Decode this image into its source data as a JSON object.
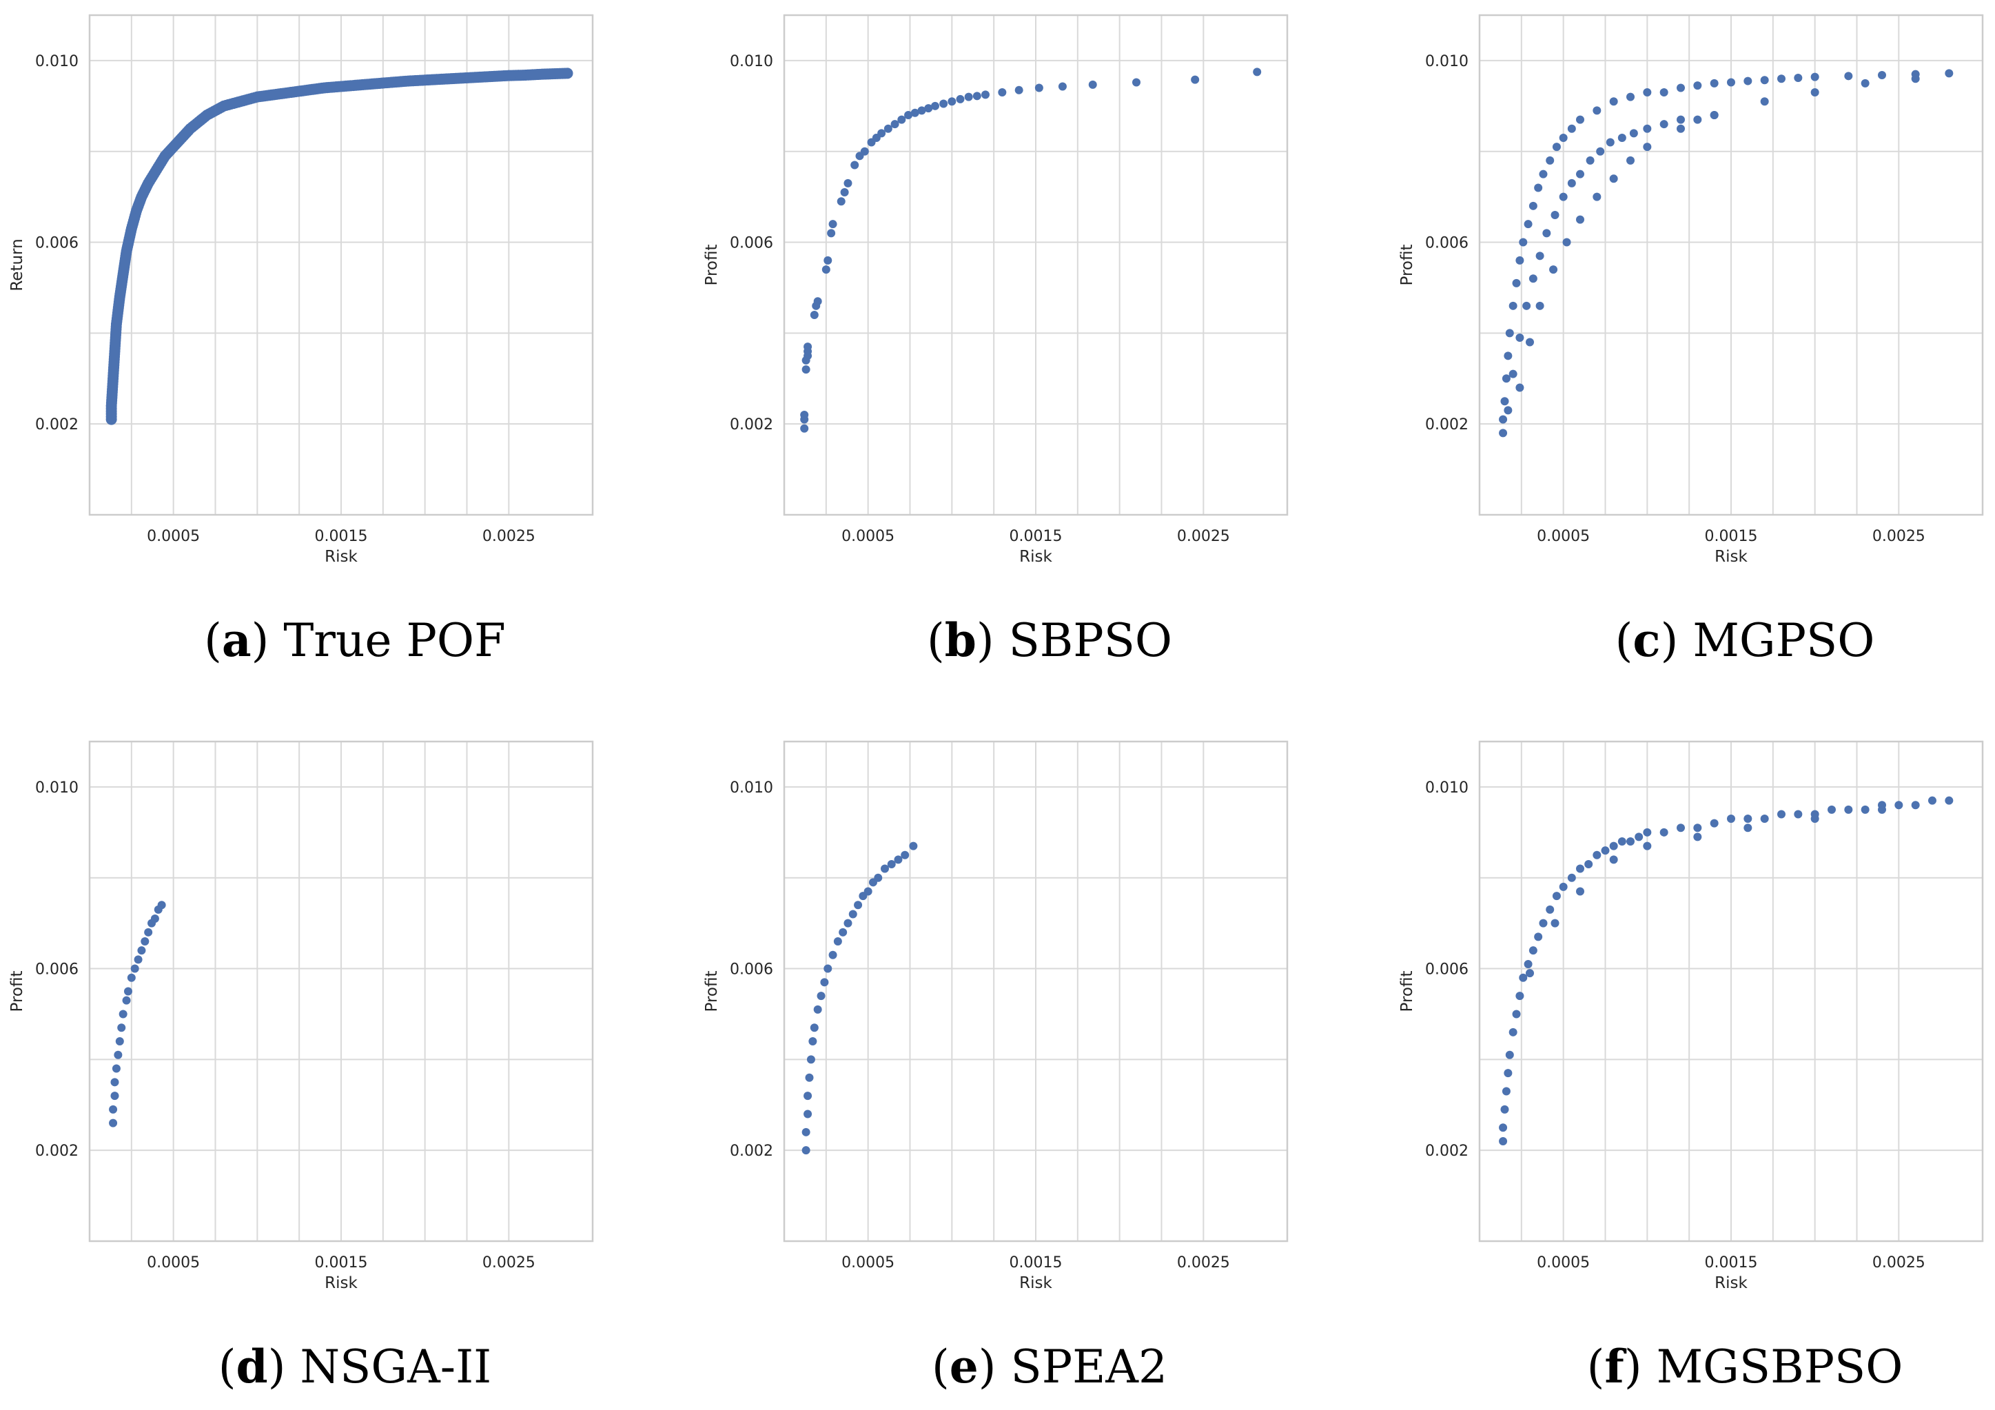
{
  "colors": {
    "points": "#4c72b0",
    "grid": "#d9d9d9",
    "frame": "#cccccc",
    "text": "#262626"
  },
  "chart_data": [
    {
      "id": "a",
      "type": "scatter",
      "caption_letter": "a",
      "caption_text": "True POF",
      "xlabel": "Risk",
      "ylabel": "Return",
      "xlim": [
        0.0,
        0.003
      ],
      "ylim": [
        0.0,
        0.011
      ],
      "xticks": [
        "0.0005",
        "0.0015",
        "0.0025"
      ],
      "yticks": [
        "0.002",
        "0.006",
        "0.010"
      ],
      "x": [
        0.00013,
        0.00013,
        0.00014,
        0.00015,
        0.00016,
        0.00018,
        0.0002,
        0.00022,
        0.00025,
        0.00028,
        0.00031,
        0.00035,
        0.0004,
        0.00045,
        0.0005,
        0.00055,
        0.0006,
        0.0007,
        0.0008,
        0.0009,
        0.001,
        0.0011,
        0.0012,
        0.0013,
        0.0014,
        0.0015,
        0.0016,
        0.0017,
        0.0018,
        0.0019,
        0.002,
        0.0021,
        0.0022,
        0.0023,
        0.0024,
        0.0025,
        0.0026,
        0.0027,
        0.00285
      ],
      "y": [
        0.0021,
        0.0024,
        0.003,
        0.0036,
        0.0042,
        0.0048,
        0.0053,
        0.0058,
        0.0063,
        0.0067,
        0.007,
        0.0073,
        0.0076,
        0.0079,
        0.0081,
        0.0083,
        0.0085,
        0.0088,
        0.009,
        0.0091,
        0.0092,
        0.00925,
        0.0093,
        0.00935,
        0.0094,
        0.00943,
        0.00946,
        0.00949,
        0.00952,
        0.00955,
        0.00957,
        0.00959,
        0.00961,
        0.00963,
        0.00965,
        0.00967,
        0.00968,
        0.0097,
        0.00972
      ]
    },
    {
      "id": "b",
      "type": "scatter",
      "caption_letter": "b",
      "caption_text": "SBPSO",
      "xlabel": "Risk",
      "ylabel": "Profit",
      "xlim": [
        0.0,
        0.003
      ],
      "ylim": [
        0.0,
        0.011
      ],
      "xticks": [
        "0.0005",
        "0.0015",
        "0.0025"
      ],
      "yticks": [
        "0.002",
        "0.006",
        "0.010"
      ],
      "x": [
        0.00012,
        0.00012,
        0.00012,
        0.00013,
        0.00013,
        0.00014,
        0.00014,
        0.00014,
        0.00018,
        0.00019,
        0.0002,
        0.00025,
        0.00026,
        0.00028,
        0.00029,
        0.00034,
        0.00036,
        0.00038,
        0.00042,
        0.00045,
        0.00048,
        0.00052,
        0.00055,
        0.00058,
        0.00062,
        0.00066,
        0.0007,
        0.00074,
        0.00078,
        0.00082,
        0.00086,
        0.0009,
        0.00095,
        0.001,
        0.00105,
        0.0011,
        0.00115,
        0.0012,
        0.0013,
        0.0014,
        0.00152,
        0.00166,
        0.00184,
        0.0021,
        0.00245,
        0.00282
      ],
      "y": [
        0.0019,
        0.0021,
        0.0022,
        0.0032,
        0.0034,
        0.0035,
        0.0036,
        0.0037,
        0.0044,
        0.0046,
        0.0047,
        0.0054,
        0.0056,
        0.0062,
        0.0064,
        0.0069,
        0.0071,
        0.0073,
        0.0077,
        0.0079,
        0.008,
        0.0082,
        0.0083,
        0.0084,
        0.0085,
        0.0086,
        0.0087,
        0.0088,
        0.00885,
        0.0089,
        0.00895,
        0.009,
        0.00905,
        0.0091,
        0.00915,
        0.0092,
        0.00922,
        0.00925,
        0.0093,
        0.00935,
        0.0094,
        0.00943,
        0.00947,
        0.00952,
        0.00958,
        0.00975
      ]
    },
    {
      "id": "c",
      "type": "scatter",
      "caption_letter": "c",
      "caption_text": "MGPSO",
      "xlabel": "Risk",
      "ylabel": "Profit",
      "xlim": [
        0.0,
        0.003
      ],
      "ylim": [
        0.0,
        0.011
      ],
      "xticks": [
        "0.0005",
        "0.0015",
        "0.0025"
      ],
      "yticks": [
        "0.002",
        "0.006",
        "0.010"
      ],
      "x": [
        0.00014,
        0.00014,
        0.00015,
        0.00016,
        0.00017,
        0.00018,
        0.0002,
        0.00022,
        0.00024,
        0.00026,
        0.00029,
        0.00032,
        0.00035,
        0.00038,
        0.00042,
        0.00046,
        0.0005,
        0.00055,
        0.0006,
        0.0007,
        0.0008,
        0.0009,
        0.001,
        0.0011,
        0.0012,
        0.0013,
        0.0014,
        0.0015,
        0.0016,
        0.0017,
        0.0018,
        0.0019,
        0.002,
        0.0022,
        0.0024,
        0.0026,
        0.0028,
        0.00017,
        0.0002,
        0.00024,
        0.00028,
        0.00032,
        0.00036,
        0.0004,
        0.00045,
        0.0005,
        0.00055,
        0.0006,
        0.00066,
        0.00072,
        0.00078,
        0.00085,
        0.00092,
        0.001,
        0.0011,
        0.0012,
        0.0013,
        0.0014,
        0.00024,
        0.0003,
        0.00036,
        0.00044,
        0.00052,
        0.0006,
        0.0007,
        0.0008,
        0.0009,
        0.001,
        0.0012,
        0.0014,
        0.0017,
        0.002,
        0.0023,
        0.0026
      ],
      "y": [
        0.0018,
        0.0021,
        0.0025,
        0.003,
        0.0035,
        0.004,
        0.0046,
        0.0051,
        0.0056,
        0.006,
        0.0064,
        0.0068,
        0.0072,
        0.0075,
        0.0078,
        0.0081,
        0.0083,
        0.0085,
        0.0087,
        0.0089,
        0.0091,
        0.0092,
        0.0093,
        0.0093,
        0.0094,
        0.00945,
        0.0095,
        0.00952,
        0.00955,
        0.00957,
        0.0096,
        0.00962,
        0.00964,
        0.00966,
        0.00968,
        0.0097,
        0.00972,
        0.0023,
        0.0031,
        0.0039,
        0.0046,
        0.0052,
        0.0057,
        0.0062,
        0.0066,
        0.007,
        0.0073,
        0.0075,
        0.0078,
        0.008,
        0.0082,
        0.0083,
        0.0084,
        0.0085,
        0.0086,
        0.0087,
        0.0087,
        0.0088,
        0.0028,
        0.0038,
        0.0046,
        0.0054,
        0.006,
        0.0065,
        0.007,
        0.0074,
        0.0078,
        0.0081,
        0.0085,
        0.0088,
        0.0091,
        0.0093,
        0.0095,
        0.0096
      ]
    },
    {
      "id": "d",
      "type": "scatter",
      "caption_letter": "d",
      "caption_text": "NSGA-II",
      "xlabel": "Risk",
      "ylabel": "Profit",
      "xlim": [
        0.0,
        0.003
      ],
      "ylim": [
        0.0,
        0.011
      ],
      "xticks": [
        "0.0005",
        "0.0015",
        "0.0025"
      ],
      "yticks": [
        "0.002",
        "0.006",
        "0.010"
      ],
      "x": [
        0.00014,
        0.00014,
        0.00015,
        0.00015,
        0.00016,
        0.00017,
        0.00018,
        0.00019,
        0.0002,
        0.00022,
        0.00023,
        0.00025,
        0.00027,
        0.00029,
        0.00031,
        0.00033,
        0.00035,
        0.00037,
        0.00039,
        0.00041,
        0.00043
      ],
      "y": [
        0.0026,
        0.0029,
        0.0032,
        0.0035,
        0.0038,
        0.0041,
        0.0044,
        0.0047,
        0.005,
        0.0053,
        0.0055,
        0.0058,
        0.006,
        0.0062,
        0.0064,
        0.0066,
        0.0068,
        0.007,
        0.0071,
        0.0073,
        0.0074
      ]
    },
    {
      "id": "e",
      "type": "scatter",
      "caption_letter": "e",
      "caption_text": "SPEA2",
      "xlabel": "Risk",
      "ylabel": "Profit",
      "xlim": [
        0.0,
        0.003
      ],
      "ylim": [
        0.0,
        0.011
      ],
      "xticks": [
        "0.0005",
        "0.0015",
        "0.0025"
      ],
      "yticks": [
        "0.002",
        "0.006",
        "0.010"
      ],
      "x": [
        0.00013,
        0.00013,
        0.00014,
        0.00014,
        0.00015,
        0.00016,
        0.00017,
        0.00018,
        0.0002,
        0.00022,
        0.00024,
        0.00026,
        0.00029,
        0.00032,
        0.00035,
        0.00038,
        0.00041,
        0.00044,
        0.00047,
        0.0005,
        0.00053,
        0.00056,
        0.0006,
        0.00064,
        0.00068,
        0.00072,
        0.00077
      ],
      "y": [
        0.002,
        0.0024,
        0.0028,
        0.0032,
        0.0036,
        0.004,
        0.0044,
        0.0047,
        0.0051,
        0.0054,
        0.0057,
        0.006,
        0.0063,
        0.0066,
        0.0068,
        0.007,
        0.0072,
        0.0074,
        0.0076,
        0.0077,
        0.0079,
        0.008,
        0.0082,
        0.0083,
        0.0084,
        0.0085,
        0.0087
      ]
    },
    {
      "id": "f",
      "type": "scatter",
      "caption_letter": "f",
      "caption_text": "MGSBPSO",
      "xlabel": "Risk",
      "ylabel": "Profit",
      "xlim": [
        0.0,
        0.003
      ],
      "ylim": [
        0.0,
        0.011
      ],
      "xticks": [
        "0.0005",
        "0.0015",
        "0.0025"
      ],
      "yticks": [
        "0.002",
        "0.006",
        "0.010"
      ],
      "x": [
        0.00014,
        0.00014,
        0.00015,
        0.00016,
        0.00017,
        0.00018,
        0.0002,
        0.00022,
        0.00024,
        0.00026,
        0.00029,
        0.00032,
        0.00035,
        0.00038,
        0.00042,
        0.00046,
        0.0005,
        0.00055,
        0.0006,
        0.00065,
        0.0007,
        0.00075,
        0.0008,
        0.00085,
        0.0009,
        0.00095,
        0.001,
        0.0011,
        0.0012,
        0.0013,
        0.0014,
        0.0015,
        0.0016,
        0.0017,
        0.0018,
        0.0019,
        0.002,
        0.0021,
        0.0022,
        0.0023,
        0.0024,
        0.0025,
        0.0026,
        0.0027,
        0.0028,
        0.0003,
        0.00045,
        0.0006,
        0.0008,
        0.001,
        0.0013,
        0.0016,
        0.002,
        0.0024
      ],
      "y": [
        0.0022,
        0.0025,
        0.0029,
        0.0033,
        0.0037,
        0.0041,
        0.0046,
        0.005,
        0.0054,
        0.0058,
        0.0061,
        0.0064,
        0.0067,
        0.007,
        0.0073,
        0.0076,
        0.0078,
        0.008,
        0.0082,
        0.0083,
        0.0085,
        0.0086,
        0.0087,
        0.0088,
        0.0088,
        0.0089,
        0.009,
        0.009,
        0.0091,
        0.0091,
        0.0092,
        0.0093,
        0.0093,
        0.0093,
        0.0094,
        0.0094,
        0.0094,
        0.0095,
        0.0095,
        0.0095,
        0.0096,
        0.0096,
        0.0096,
        0.0097,
        0.0097,
        0.0059,
        0.007,
        0.0077,
        0.0084,
        0.0087,
        0.0089,
        0.0091,
        0.0093,
        0.0095
      ]
    }
  ]
}
